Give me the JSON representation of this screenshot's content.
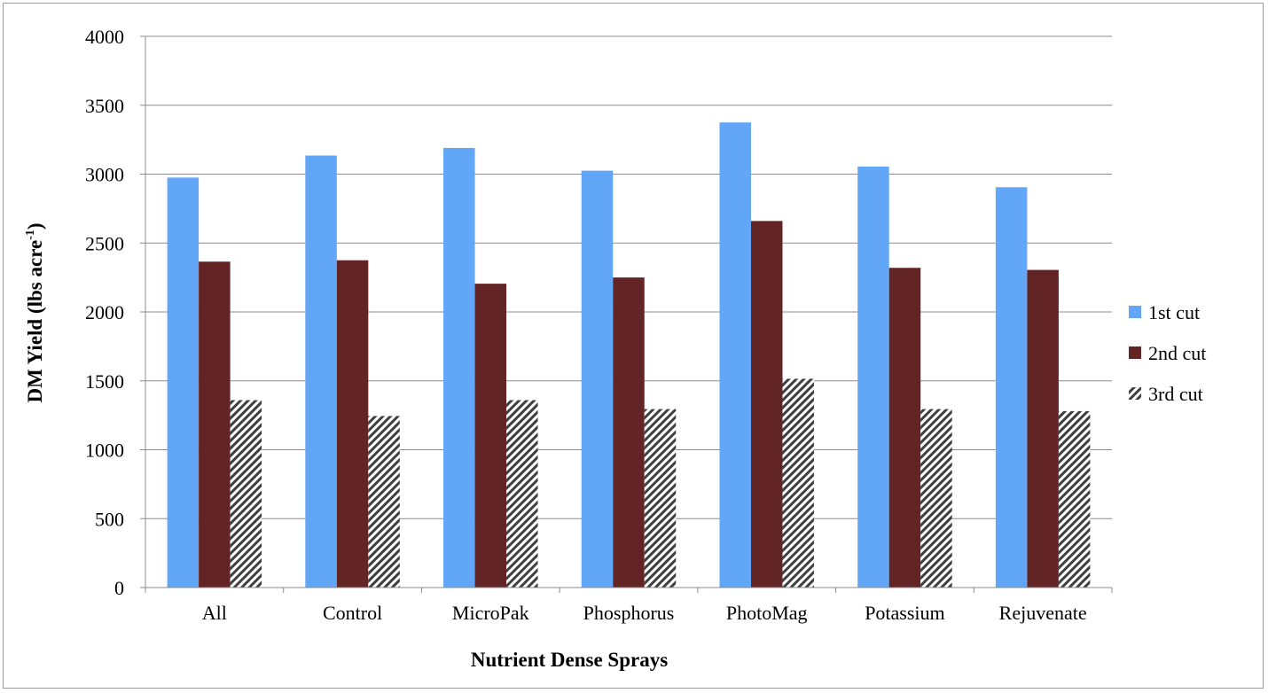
{
  "chart_data": {
    "type": "bar",
    "title": "",
    "xlabel": "Nutrient Dense Sprays",
    "ylabel": {
      "main": "DM Yield (lbs acre",
      "sup": "-1",
      "close": ")"
    },
    "categories": [
      "All",
      "Control",
      "MicroPak",
      "Phosphorus",
      "PhotoMag",
      "Potassium",
      "Rejuvenate"
    ],
    "yticks": [
      "0",
      "500",
      "1000",
      "1500",
      "2000",
      "2500",
      "3000",
      "3500",
      "4000"
    ],
    "ylim": [
      0,
      4000
    ],
    "grid": true,
    "legend_position": "right",
    "series": [
      {
        "name": "1st cut",
        "color": "#62a6f8",
        "pattern": "solid",
        "values": [
          2975,
          3135,
          3190,
          3025,
          3375,
          3055,
          2905
        ]
      },
      {
        "name": "2nd cut",
        "color": "#632425",
        "pattern": "solid",
        "values": [
          2365,
          2375,
          2205,
          2250,
          2660,
          2320,
          2305
        ]
      },
      {
        "name": "3rd cut",
        "color": "#3f3f3f",
        "pattern": "diagonal-hatch",
        "values": [
          1360,
          1245,
          1360,
          1295,
          1515,
          1295,
          1280
        ]
      }
    ]
  }
}
